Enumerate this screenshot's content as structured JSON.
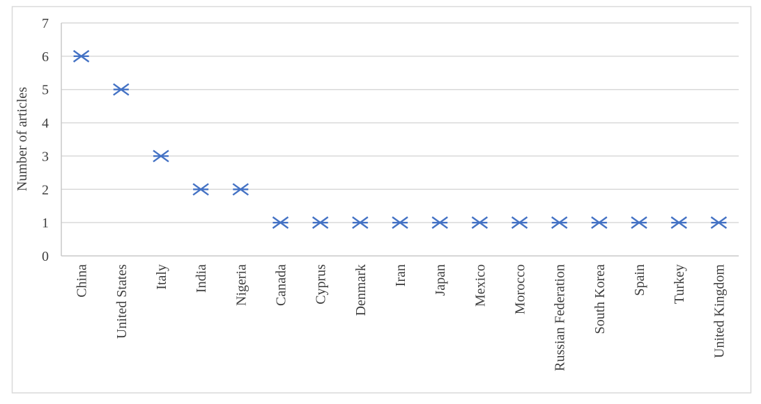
{
  "chart_data": {
    "type": "scatter",
    "title": "",
    "xlabel": "",
    "ylabel": "Number of articles",
    "categories": [
      "China",
      "United States",
      "Italy",
      "India",
      "Nigeria",
      "Canada",
      "Cyprus",
      "Denmark",
      "Iran",
      "Japan",
      "Mexico",
      "Morocco",
      "Russian Federation",
      "South Korea",
      "Spain",
      "Turkey",
      "United Kingdom"
    ],
    "values": [
      6,
      5,
      3,
      2,
      2,
      1,
      1,
      1,
      1,
      1,
      1,
      1,
      1,
      1,
      1,
      1,
      1
    ],
    "ylim": [
      0,
      7
    ],
    "yticks": [
      0,
      1,
      2,
      3,
      4,
      5,
      6,
      7
    ],
    "grid": true,
    "legend": "none",
    "marker": {
      "shape": "asterisk-horizontal",
      "color": "#4472C4",
      "size": 22,
      "stroke_width": 2.4
    },
    "colors": {
      "gridline": "#D9D9D9",
      "axis_line": "#C8C8C8",
      "text": "#3F3F3F",
      "frame_border": "#D9D9D9",
      "background": "#FFFFFF"
    }
  }
}
